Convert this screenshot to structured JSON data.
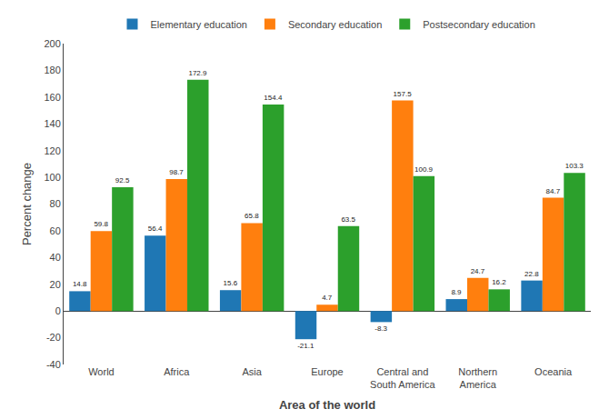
{
  "chart_data": {
    "type": "bar",
    "categories": [
      "World",
      "Africa",
      "Asia",
      "Europe",
      "Central and\nSouth America",
      "Northern\nAmerica",
      "Oceania"
    ],
    "series": [
      {
        "name": "Elementary education",
        "values": [
          14.8,
          56.4,
          15.6,
          -21.1,
          -8.3,
          8.9,
          22.8
        ]
      },
      {
        "name": "Secondary education",
        "values": [
          59.8,
          98.7,
          65.8,
          4.7,
          157.5,
          24.7,
          84.7
        ]
      },
      {
        "name": "Postsecondary education",
        "values": [
          92.5,
          172.9,
          154.4,
          63.5,
          100.9,
          16.2,
          103.3
        ]
      }
    ],
    "xlabel": "Area of the world",
    "ylabel": "Percent change",
    "ylim": [
      -40,
      200
    ],
    "yticks": [
      -40,
      -20,
      0,
      20,
      40,
      60,
      80,
      100,
      120,
      140,
      160,
      180,
      200
    ],
    "data_labels": true,
    "legend": "top",
    "grid": false
  }
}
